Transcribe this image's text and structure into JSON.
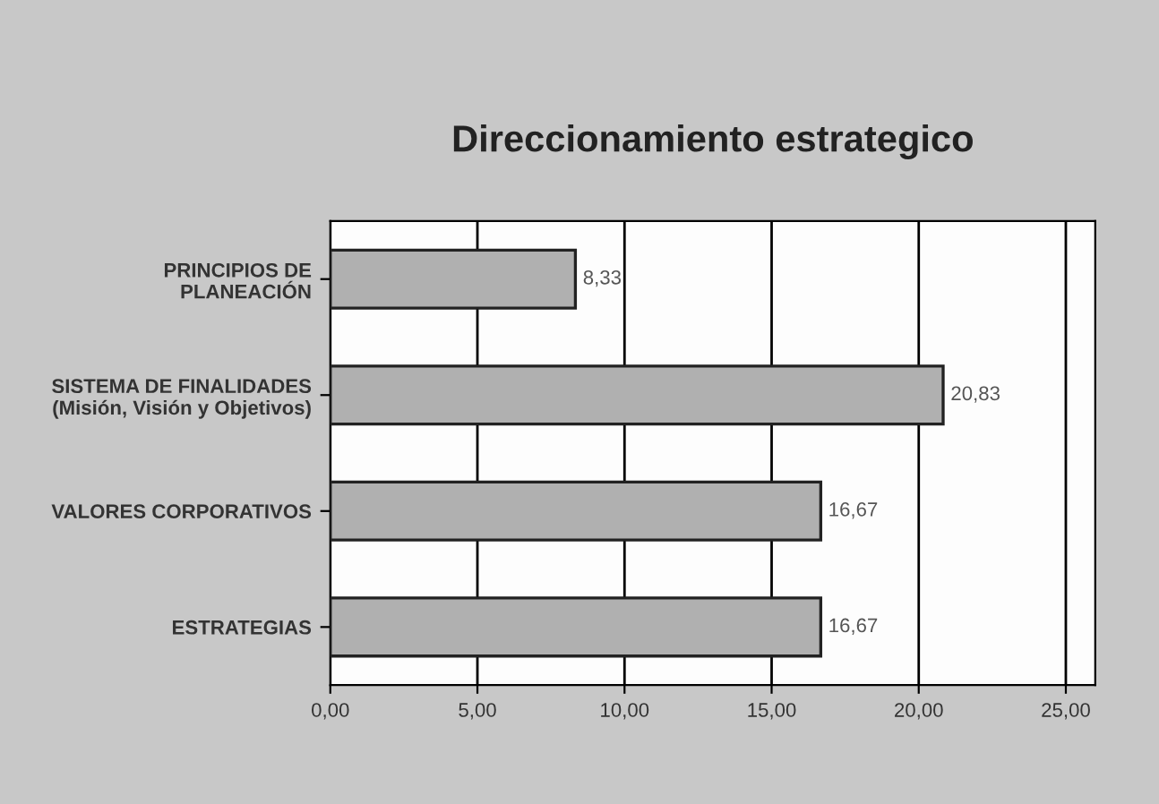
{
  "chart_data": {
    "type": "bar",
    "orientation": "horizontal",
    "title": "Direccionamiento estrategico",
    "categories": [
      "PRINCIPIOS DE\nPLANEACIÓN",
      "SISTEMA DE FINALIDADES\n(Misión, Visión y Objetivos)",
      "VALORES CORPORATIVOS",
      "ESTRATEGIAS"
    ],
    "values": [
      8.33,
      20.83,
      16.67,
      16.67
    ],
    "value_labels": [
      "8,33",
      "20,83",
      "16,67",
      "16,67"
    ],
    "color": "#b0b0b0",
    "xlim": [
      0,
      26
    ],
    "xticks": [
      {
        "value": 0,
        "label": "0,00"
      },
      {
        "value": 5,
        "label": "5,00"
      },
      {
        "value": 10,
        "label": "10,00"
      },
      {
        "value": 15,
        "label": "15,00"
      },
      {
        "value": 20,
        "label": "20,00"
      },
      {
        "value": 25,
        "label": "25,00"
      }
    ],
    "grid": "x"
  }
}
